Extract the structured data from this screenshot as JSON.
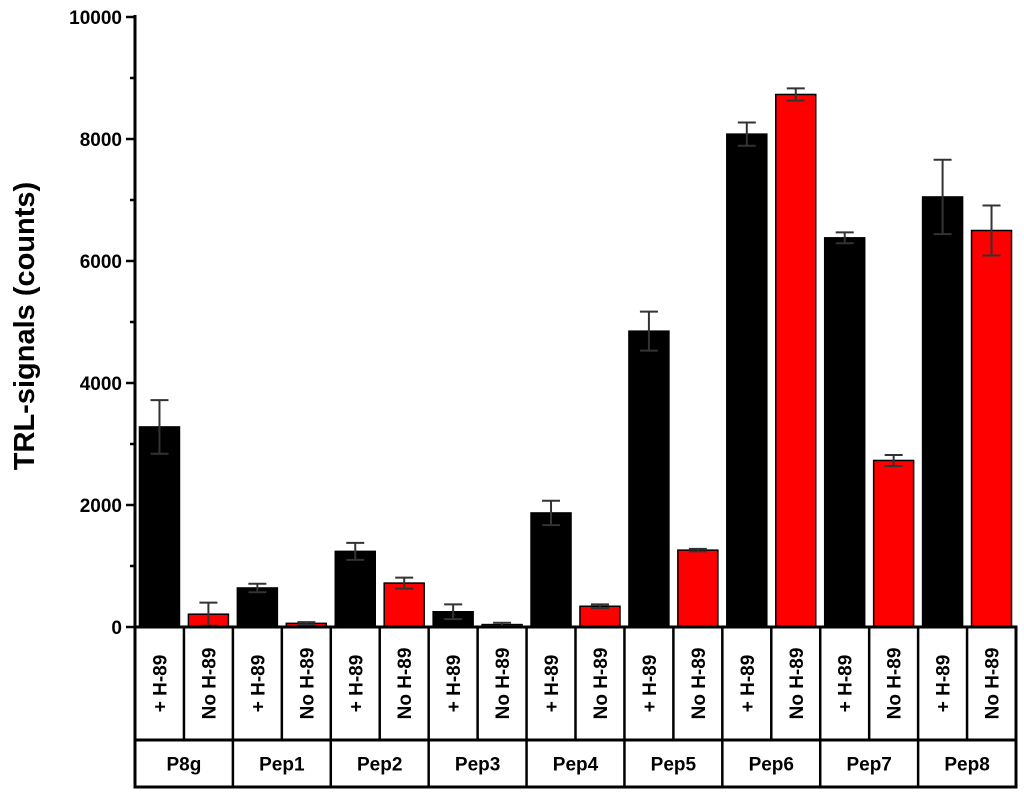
{
  "chart_data": {
    "type": "bar",
    "ylabel": "TRL-signals (counts)",
    "xlabel": "",
    "ylim": [
      0,
      10000
    ],
    "yticks": [
      0,
      2000,
      4000,
      6000,
      8000,
      10000
    ],
    "minor_ticks": true,
    "grid": false,
    "legend": "none",
    "conditions": [
      "+ H-89",
      "No H-89"
    ],
    "groups": [
      "P8g",
      "Pep1",
      "Pep2",
      "Pep3",
      "Pep4",
      "Pep5",
      "Pep6",
      "Pep7",
      "Pep8"
    ],
    "series": [
      {
        "condition": "+ H-89",
        "color": "#000000",
        "values": [
          3280,
          640,
          1240,
          250,
          1870,
          4850,
          8080,
          6380,
          7050
        ],
        "errors": [
          440,
          70,
          140,
          120,
          200,
          320,
          190,
          90,
          610
        ]
      },
      {
        "condition": "No H-89",
        "color": "#ff0000",
        "values": [
          210,
          60,
          720,
          40,
          340,
          1260,
          8730,
          2730,
          6500
        ],
        "errors": [
          190,
          20,
          90,
          30,
          30,
          20,
          100,
          90,
          410
        ]
      }
    ],
    "error_bar_color": "#333333"
  }
}
